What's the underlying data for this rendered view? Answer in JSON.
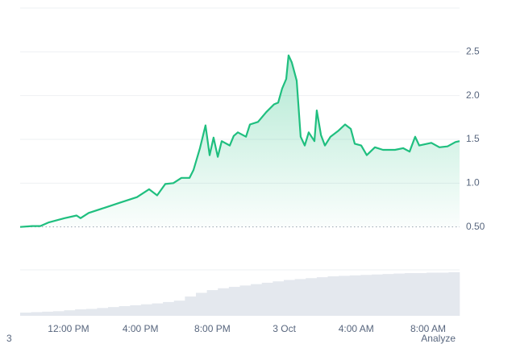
{
  "chart_data": {
    "type": "line",
    "x": [
      -2.69,
      -2.02,
      -1.57,
      -1.12,
      -0.22,
      0.45,
      0.67,
      1.12,
      2.02,
      2.91,
      3.81,
      4.48,
      4.93,
      5.38,
      5.83,
      6.28,
      6.73,
      6.95,
      7.31,
      7.62,
      7.85,
      8.07,
      8.3,
      8.52,
      8.97,
      9.19,
      9.42,
      9.87,
      10.09,
      10.54,
      10.99,
      11.43,
      11.66,
      11.88,
      12.11,
      12.24,
      12.42,
      12.69,
      12.91,
      13.14,
      13.36,
      13.68,
      13.81,
      14.04,
      14.26,
      14.57,
      15.02,
      15.38,
      15.7,
      15.92,
      16.28,
      16.59,
      17.04,
      17.49,
      18.16,
      18.61,
      18.97,
      19.28,
      19.51,
      20.18,
      20.63,
      21.08,
      21.52,
      21.75
    ],
    "values": [
      0.5,
      0.51,
      0.51,
      0.55,
      0.6,
      0.63,
      0.6,
      0.66,
      0.72,
      0.78,
      0.84,
      0.93,
      0.86,
      0.99,
      1.0,
      1.06,
      1.06,
      1.15,
      1.4,
      1.66,
      1.32,
      1.52,
      1.3,
      1.48,
      1.43,
      1.54,
      1.58,
      1.53,
      1.67,
      1.7,
      1.81,
      1.9,
      1.92,
      2.08,
      2.19,
      2.46,
      2.38,
      2.17,
      1.53,
      1.43,
      1.58,
      1.48,
      1.83,
      1.55,
      1.43,
      1.53,
      1.6,
      1.67,
      1.62,
      1.45,
      1.43,
      1.32,
      1.41,
      1.38,
      1.38,
      1.4,
      1.36,
      1.53,
      1.43,
      1.46,
      1.41,
      1.42,
      1.47,
      1.48
    ],
    "color": "#1fbf7f",
    "xlim": [
      -2.69,
      21.75
    ],
    "xticks": [
      {
        "value": 0,
        "label": "12:00 PM"
      },
      {
        "value": 4,
        "label": "4:00 PM"
      },
      {
        "value": 8,
        "label": "8:00 PM"
      },
      {
        "value": 12,
        "label": "3 Oct"
      },
      {
        "value": 16,
        "label": "4:00 AM"
      },
      {
        "value": 20,
        "label": "8:00 AM"
      }
    ],
    "ylim": [
      0,
      3
    ],
    "yticks": [
      {
        "value": 0.5,
        "label": "0.50"
      },
      {
        "value": 1,
        "label": "1.0"
      },
      {
        "value": 1.5,
        "label": "1.5"
      },
      {
        "value": 2,
        "label": "2.0"
      },
      {
        "value": 2.5,
        "label": "2.5"
      }
    ],
    "grid": true,
    "volume": {
      "values": [
        0.07,
        0.08,
        0.09,
        0.1,
        0.12,
        0.14,
        0.15,
        0.17,
        0.19,
        0.21,
        0.23,
        0.25,
        0.27,
        0.3,
        0.33,
        0.42,
        0.5,
        0.56,
        0.6,
        0.63,
        0.66,
        0.69,
        0.72,
        0.75,
        0.78,
        0.8,
        0.82,
        0.84,
        0.86,
        0.87,
        0.88,
        0.89,
        0.9,
        0.91,
        0.92,
        0.93,
        0.93,
        0.94,
        0.94,
        0.95
      ],
      "ylim": [
        0,
        1
      ],
      "color": "#e4e8ee"
    },
    "annotations": [
      "3",
      "Analyze"
    ]
  }
}
